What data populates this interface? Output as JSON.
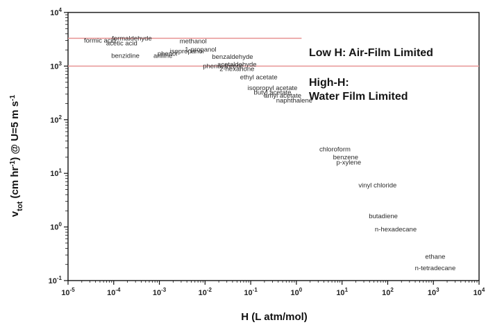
{
  "chart_data": {
    "type": "scatter",
    "title": "",
    "xlabel": "H (L atm/mol)",
    "ylabel": "v_tot (cm hr^-1) @ U=5 m s^-1",
    "xscale": "log",
    "yscale": "log",
    "xlim": [
      1e-05,
      10000
    ],
    "ylim": [
      0.1,
      10000
    ],
    "grid": false,
    "x_ticks": [
      {
        "value": 1e-05,
        "base": "10",
        "exp": "-5"
      },
      {
        "value": 0.0001,
        "base": "10",
        "exp": "-4"
      },
      {
        "value": 0.001,
        "base": "10",
        "exp": "-3"
      },
      {
        "value": 0.01,
        "base": "10",
        "exp": "-2"
      },
      {
        "value": 0.1,
        "base": "10",
        "exp": "-1"
      },
      {
        "value": 1,
        "base": "10",
        "exp": "0"
      },
      {
        "value": 10,
        "base": "10",
        "exp": "1"
      },
      {
        "value": 100,
        "base": "10",
        "exp": "2"
      },
      {
        "value": 1000,
        "base": "10",
        "exp": "3"
      },
      {
        "value": 10000,
        "base": "10",
        "exp": "4"
      }
    ],
    "y_ticks": [
      {
        "value": 0.1,
        "base": "10",
        "exp": "-1"
      },
      {
        "value": 1,
        "base": "10",
        "exp": "0"
      },
      {
        "value": 10,
        "base": "10",
        "exp": "1"
      },
      {
        "value": 100,
        "base": "10",
        "exp": "2"
      },
      {
        "value": 1000,
        "base": "10",
        "exp": "3"
      },
      {
        "value": 10000,
        "base": "10",
        "exp": "4"
      }
    ],
    "reference_lines": [
      {
        "y": 3300,
        "x_end": 1.3,
        "color": "#e89a9a"
      },
      {
        "y": 1000,
        "x_end": 10000,
        "color": "#e89a9a"
      }
    ],
    "region_labels": [
      {
        "lines": [
          "Low H: Air-Film Limited"
        ]
      },
      {
        "lines": [
          "High-H:",
          "Water Film Limited"
        ]
      }
    ],
    "points": [
      {
        "label": "formaldehyde",
        "x": 0.00025,
        "y": 3300
      },
      {
        "label": "formic acid",
        "x": 5e-05,
        "y": 3000
      },
      {
        "label": "acetic acid",
        "x": 0.00015,
        "y": 2650
      },
      {
        "label": "methanol",
        "x": 0.0055,
        "y": 2900
      },
      {
        "label": "1-propanol",
        "x": 0.008,
        "y": 2050
      },
      {
        "label": "isopropanol",
        "x": 0.004,
        "y": 1900
      },
      {
        "label": "benzidine",
        "x": 0.00018,
        "y": 1550
      },
      {
        "label": "aniline",
        "x": 0.0012,
        "y": 1550
      },
      {
        "label": "phenol",
        "x": 0.0015,
        "y": 1700
      },
      {
        "label": "benzaldehyde",
        "x": 0.04,
        "y": 1500
      },
      {
        "label": "acetaldehyde",
        "x": 0.05,
        "y": 1080
      },
      {
        "label": "phenanthrene",
        "x": 0.025,
        "y": 1000
      },
      {
        "label": "2-hexanone",
        "x": 0.05,
        "y": 880
      },
      {
        "label": "ethyl acetate",
        "x": 0.15,
        "y": 620
      },
      {
        "label": "isopropyl acetate",
        "x": 0.3,
        "y": 390
      },
      {
        "label": "butyl acetate",
        "x": 0.3,
        "y": 320
      },
      {
        "label": "amyl acetate",
        "x": 0.5,
        "y": 280
      },
      {
        "label": "naphthalene",
        "x": 0.9,
        "y": 230
      },
      {
        "label": "chloroform",
        "x": 7,
        "y": 28
      },
      {
        "label": "benzene",
        "x": 12,
        "y": 20
      },
      {
        "label": "p-xylene",
        "x": 14,
        "y": 16
      },
      {
        "label": "vinyl chloride",
        "x": 60,
        "y": 6
      },
      {
        "label": "butadiene",
        "x": 80,
        "y": 1.6
      },
      {
        "label": "n-hexadecane",
        "x": 150,
        "y": 0.9
      },
      {
        "label": "ethane",
        "x": 1100,
        "y": 0.28
      },
      {
        "label": "n-tetradecane",
        "x": 1100,
        "y": 0.17
      }
    ]
  }
}
